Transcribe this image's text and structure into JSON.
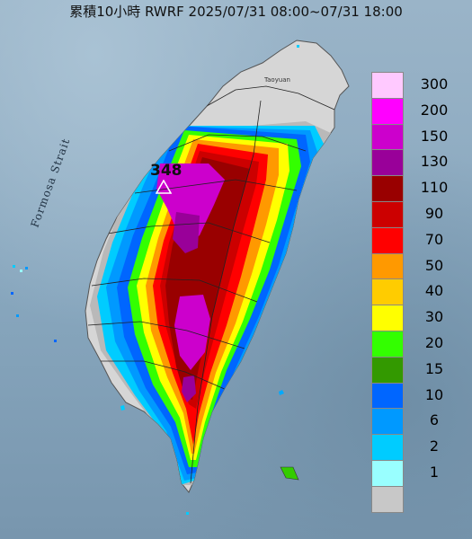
{
  "title": "累積10小時 RWRF 2025/07/31 08:00~07/31 18:00",
  "labels": {
    "strait": "Formosa Strait",
    "taoyuan": "Taoyuan",
    "peak_value": "348"
  },
  "legend": [
    {
      "label": "300",
      "color": "#ffc9ff"
    },
    {
      "label": "200",
      "color": "#ff00ff"
    },
    {
      "label": "150",
      "color": "#cc00cc"
    },
    {
      "label": "130",
      "color": "#990099"
    },
    {
      "label": "110",
      "color": "#990000"
    },
    {
      "label": "90",
      "color": "#cc0000"
    },
    {
      "label": "70",
      "color": "#ff0000"
    },
    {
      "label": "50",
      "color": "#ff9900"
    },
    {
      "label": "40",
      "color": "#ffcc00"
    },
    {
      "label": "30",
      "color": "#ffff00"
    },
    {
      "label": "20",
      "color": "#33ff00"
    },
    {
      "label": "15",
      "color": "#339900"
    },
    {
      "label": "10",
      "color": "#0066ff"
    },
    {
      "label": "6",
      "color": "#0099ff"
    },
    {
      "label": "2",
      "color": "#00ccff"
    },
    {
      "label": "1",
      "color": "#99ffff"
    },
    {
      "label": "",
      "color": "#c8c8c8"
    }
  ]
}
